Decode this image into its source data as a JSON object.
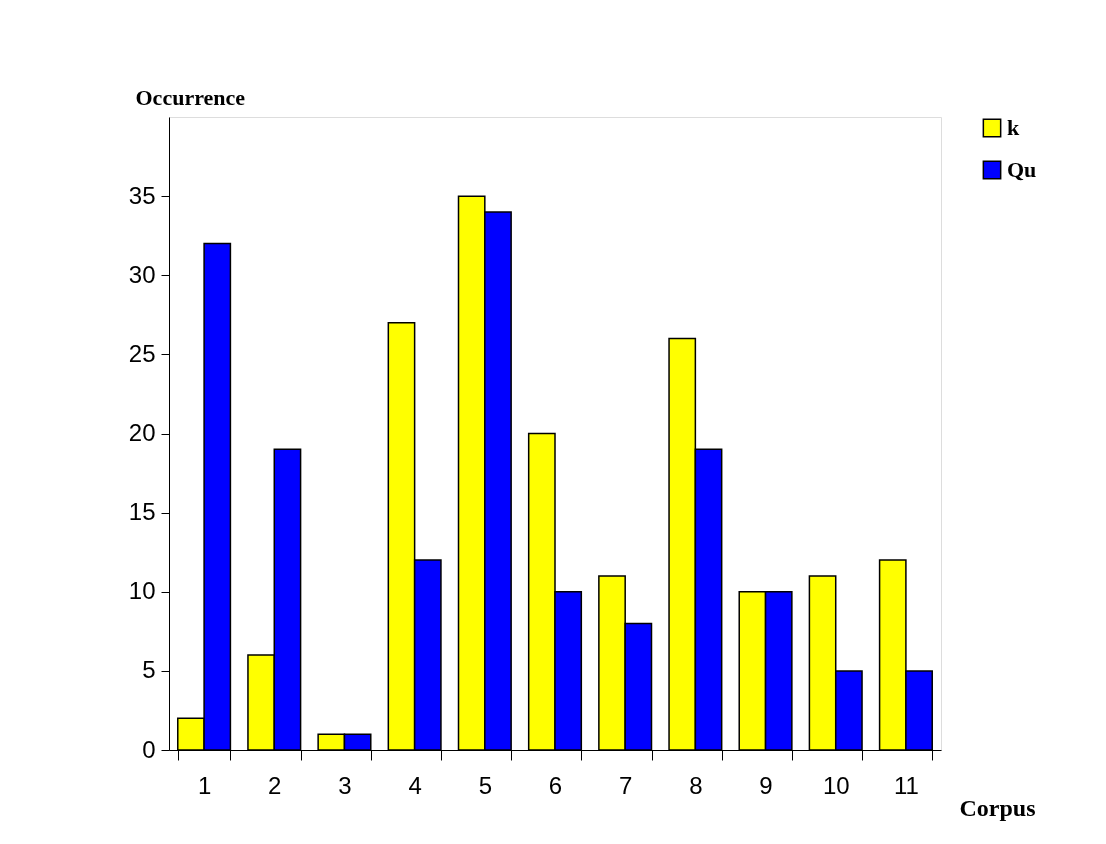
{
  "chart_data": {
    "type": "bar",
    "xlabel": "Corpus",
    "ylabel": "Occurrence",
    "categories": [
      "1",
      "2",
      "3",
      "4",
      "5",
      "6",
      "7",
      "8",
      "9",
      "10",
      "11"
    ],
    "series": [
      {
        "name": "k",
        "color": "#ffff00",
        "values": [
          2,
          6,
          1,
          27,
          35,
          20,
          11,
          26,
          10,
          11,
          12
        ]
      },
      {
        "name": "Qu",
        "color": "#0000ff",
        "values": [
          32,
          19,
          1,
          12,
          34,
          10,
          8,
          19,
          10,
          5,
          5
        ]
      }
    ],
    "ylim": [
      0,
      40
    ],
    "yticks": [
      0,
      5,
      10,
      15,
      20,
      25,
      30,
      35
    ],
    "grid": false,
    "legend": "right"
  }
}
